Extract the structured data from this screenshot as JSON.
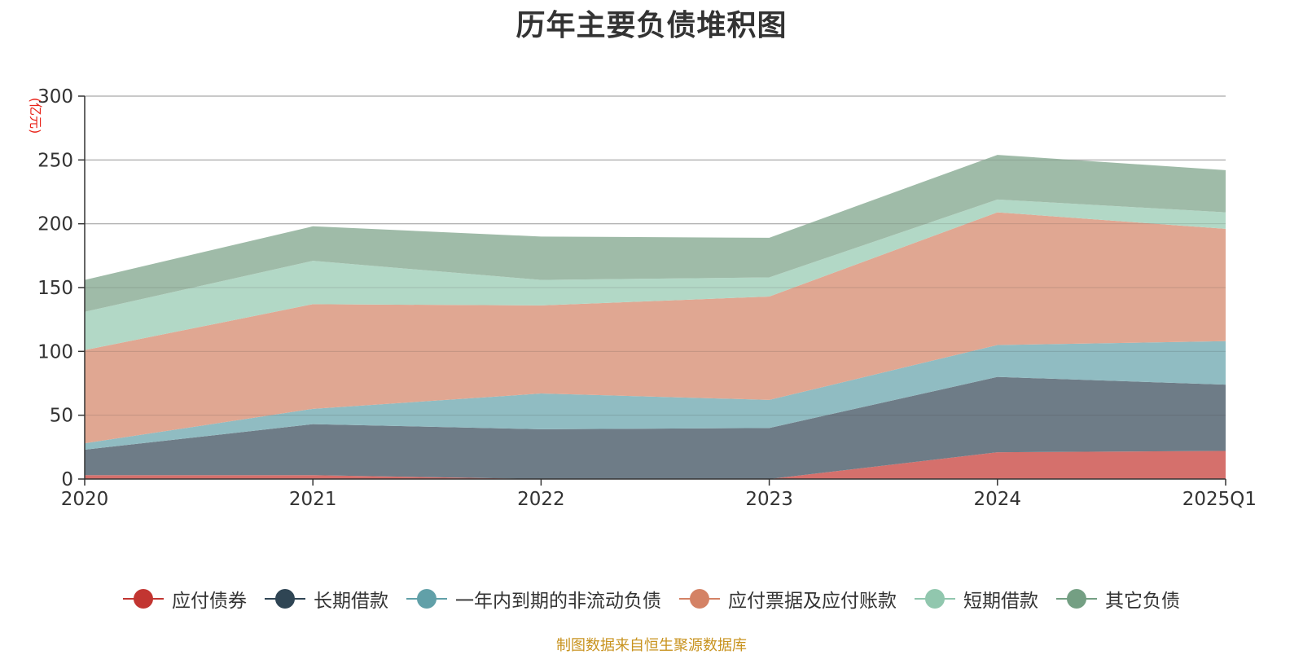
{
  "title": "历年主要负债堆积图",
  "source_note": "制图数据来自恒生聚源数据库",
  "chart_data": {
    "type": "area",
    "stacked": true,
    "title": "历年主要负债堆积图",
    "y_unit": "(亿元)",
    "categories": [
      "2020",
      "2021",
      "2022",
      "2023",
      "2024",
      "2025Q1"
    ],
    "ylim": [
      0,
      300
    ],
    "yticks": [
      0,
      50,
      100,
      150,
      200,
      250,
      300
    ],
    "grid": true,
    "legend_position": "bottom",
    "series": [
      {
        "name": "应付债券",
        "color": "#c23531",
        "fill": "#d5706c",
        "values": [
          3,
          3,
          0,
          0,
          21,
          22
        ]
      },
      {
        "name": "长期借款",
        "color": "#2f4554",
        "fill": "#6e7c87",
        "values": [
          20,
          40,
          39,
          40,
          59,
          52
        ]
      },
      {
        "name": "一年内到期的非流动负债",
        "color": "#61a0a8",
        "fill": "#90bcc2",
        "values": [
          5,
          12,
          28,
          22,
          25,
          34
        ]
      },
      {
        "name": "应付票据及应付账款",
        "color": "#d48265",
        "fill": "#e0a792",
        "values": [
          73,
          82,
          69,
          81,
          104,
          88
        ]
      },
      {
        "name": "短期借款",
        "color": "#91c7ae",
        "fill": "#b2d8c6",
        "values": [
          30,
          34,
          20,
          15,
          10,
          13
        ]
      },
      {
        "name": "其它负债",
        "color": "#749f83",
        "fill": "#9fbba8",
        "values": [
          25,
          27,
          34,
          31,
          35,
          33
        ]
      }
    ]
  }
}
